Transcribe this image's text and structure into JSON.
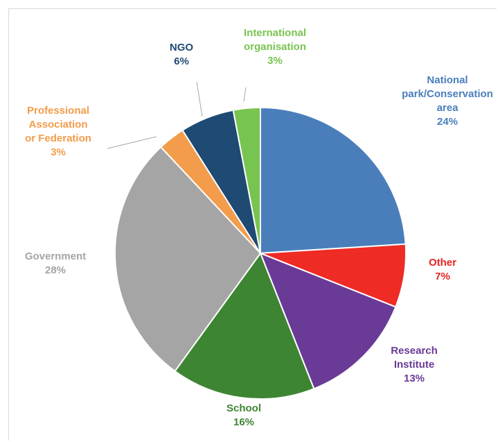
{
  "chart_data": {
    "type": "pie",
    "title": "",
    "legend": "none",
    "slices": [
      {
        "name": "National park/Conservation area",
        "value": 24,
        "label_lines": [
          "National",
          "park/Conservation",
          "area"
        ],
        "percent_label": "24%",
        "color": "#4a7ebb"
      },
      {
        "name": "Other",
        "value": 7,
        "label_lines": [
          "Other"
        ],
        "percent_label": "7%",
        "color": "#ee2b24"
      },
      {
        "name": "Research Institute",
        "value": 13,
        "label_lines": [
          "Research",
          "Institute"
        ],
        "percent_label": "13%",
        "color": "#6a3a97"
      },
      {
        "name": "School",
        "value": 16,
        "label_lines": [
          "School"
        ],
        "percent_label": "16%",
        "color": "#3e8533"
      },
      {
        "name": "Government",
        "value": 28,
        "label_lines": [
          "Government"
        ],
        "percent_label": "28%",
        "color": "#a5a5a5"
      },
      {
        "name": "Professional Association or Federation",
        "value": 3,
        "label_lines": [
          "Professional",
          "Association",
          "or Federation"
        ],
        "percent_label": "3%",
        "color": "#f39c4b"
      },
      {
        "name": "NGO",
        "value": 6,
        "label_lines": [
          "NGO"
        ],
        "percent_label": "6%",
        "color": "#1e4a74"
      },
      {
        "name": "International organisation",
        "value": 3,
        "label_lines": [
          "International",
          "organisation"
        ],
        "percent_label": "3%",
        "color": "#78c450"
      }
    ],
    "label_text_colors": [
      "#4a7ebb",
      "#e52320",
      "#6a3a97",
      "#3e8533",
      "#a5a5a5",
      "#f39c4b",
      "#1e4a74",
      "#78c450"
    ]
  }
}
